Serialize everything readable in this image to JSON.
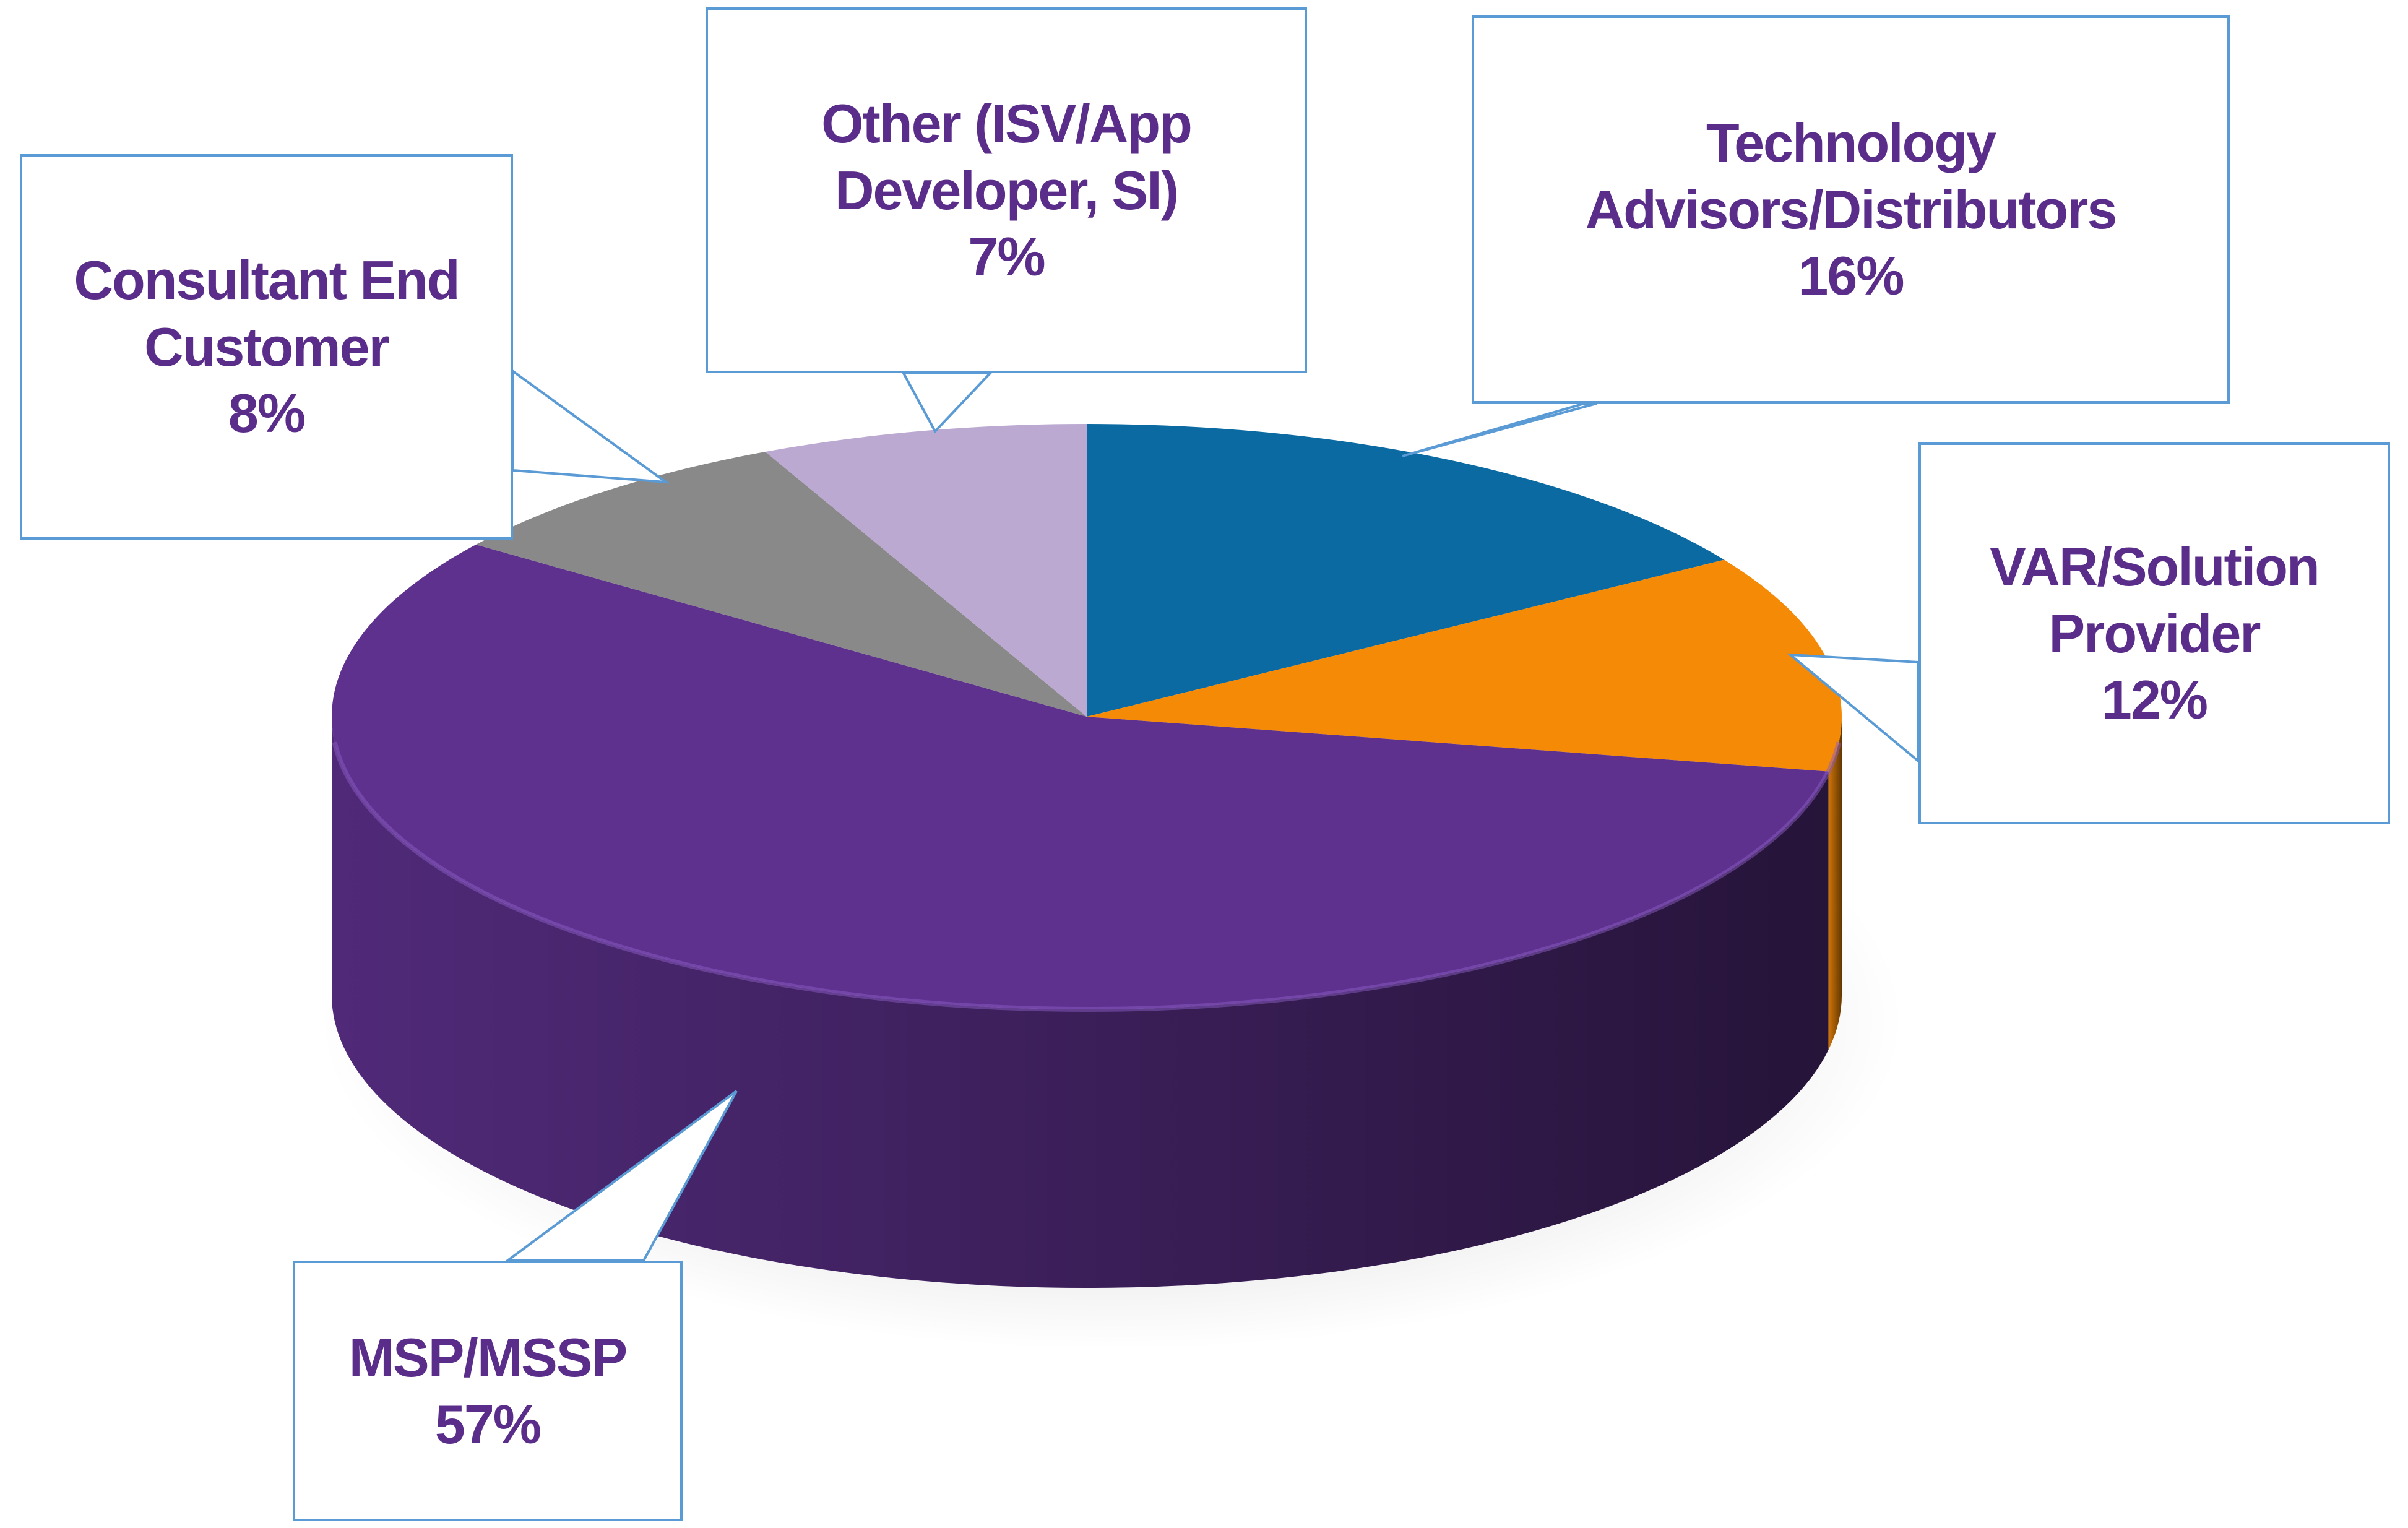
{
  "chart_data": {
    "type": "pie",
    "categories": [
      "Technology Advisors/Distributors",
      "VAR/Solution Provider",
      "MSP/MSSP",
      "Consultant End Customer",
      "Other (ISV/App Developer, SI)"
    ],
    "values": [
      16,
      12,
      57,
      8,
      7
    ],
    "value_labels": [
      "16%",
      "12%",
      "57%",
      "8%",
      "7%"
    ],
    "colors": [
      "#0a6aa1",
      "#f58a07",
      "#5e318e",
      "#898989",
      "#bba9d1"
    ]
  }
}
